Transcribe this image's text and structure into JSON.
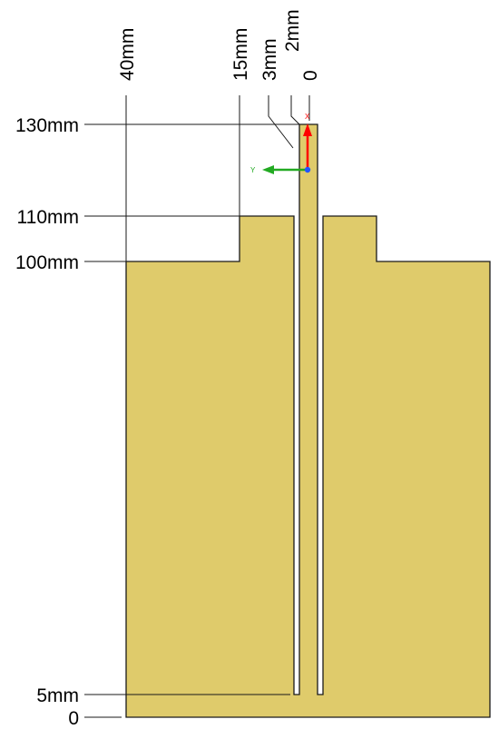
{
  "diagram": {
    "vertical_dimension_labels": [
      "130mm",
      "110mm",
      "100mm",
      "5mm",
      "0"
    ],
    "horizontal_dimension_labels": [
      "40mm",
      "15mm",
      "3mm",
      "2mm",
      "0"
    ],
    "triad": {
      "x_axis_label": "X",
      "y_axis_label": "Y"
    },
    "colors": {
      "part_fill": "#DFCB6B",
      "outline": "#1a1a1a",
      "x_axis": "#ff0000",
      "y_axis": "#22aa22",
      "origin": "#2255ff"
    }
  }
}
